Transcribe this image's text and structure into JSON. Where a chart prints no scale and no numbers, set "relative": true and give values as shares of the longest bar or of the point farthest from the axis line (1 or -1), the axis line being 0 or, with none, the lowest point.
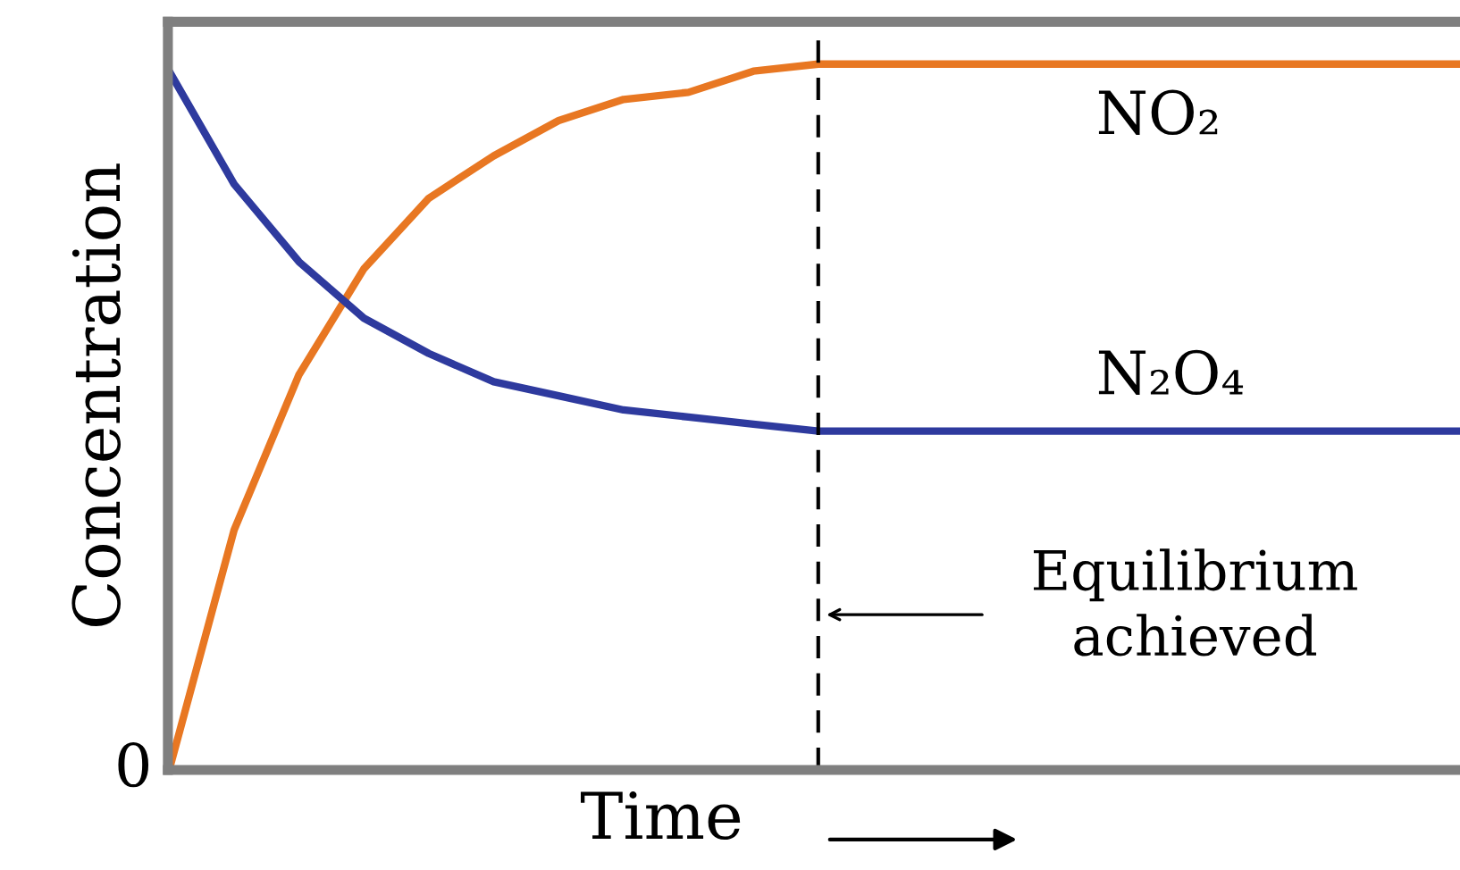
{
  "chart_data": {
    "type": "line",
    "relative": true,
    "xlabel": "Time",
    "ylabel": "Concentration",
    "categories": [
      null,
      null,
      null,
      null,
      null,
      null,
      null,
      null,
      null,
      null,
      null,
      null,
      null,
      null,
      null,
      null,
      null,
      null,
      null,
      null,
      null
    ],
    "series": [
      {
        "name": "NO₂",
        "color": "#e87722",
        "values": [
          0,
          0.34,
          0.56,
          0.71,
          0.81,
          0.87,
          0.92,
          0.95,
          0.96,
          0.99,
          1,
          1,
          1,
          1,
          1,
          1,
          1,
          1,
          1,
          1,
          1
        ]
      },
      {
        "name": "N₂O₄",
        "color": "#2e3a9e",
        "values": [
          0.99,
          0.83,
          0.72,
          0.64,
          0.59,
          0.55,
          0.53,
          0.51,
          0.5,
          0.49,
          0.48,
          0.48,
          0.48,
          0.48,
          0.48,
          0.48,
          0.48,
          0.48,
          0.48,
          0.48,
          0.48
        ]
      }
    ],
    "annotations": [
      "0",
      "Equilibrium\nachieved"
    ],
    "legend": false,
    "marker": "none",
    "line_style": "solid"
  }
}
